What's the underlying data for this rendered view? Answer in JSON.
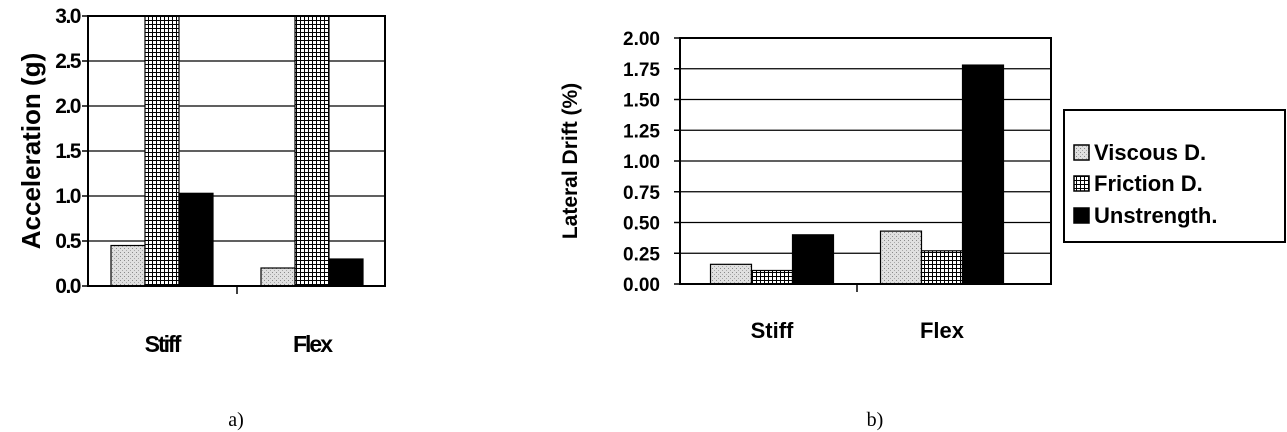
{
  "chart_data": [
    {
      "id": "a",
      "type": "bar",
      "panel_label": "a)",
      "ylabel": "Acceleration (g)",
      "ylim": [
        0,
        3.0
      ],
      "yticks": [
        "0.0",
        "0.5",
        "1.0",
        "1.5",
        "2.0",
        "2.5",
        "3.0"
      ],
      "categories": [
        "Stiff",
        "Flex"
      ],
      "series": [
        {
          "name": "Viscous D.",
          "values": [
            0.45,
            0.2
          ]
        },
        {
          "name": "Friction D.",
          "values": [
            3.0,
            3.0
          ]
        },
        {
          "name": "Unstrength.",
          "values": [
            1.03,
            0.3
          ]
        }
      ],
      "grid": true,
      "legend": "none"
    },
    {
      "id": "b",
      "type": "bar",
      "panel_label": "b)",
      "ylabel": "Lateral Drift (%)",
      "ylim": [
        0,
        2.0
      ],
      "yticks": [
        "0.00",
        "0.25",
        "0.50",
        "0.75",
        "1.00",
        "1.25",
        "1.50",
        "1.75",
        "2.00"
      ],
      "categories": [
        "Stiff",
        "Flex"
      ],
      "series": [
        {
          "name": "Viscous D.",
          "values": [
            0.16,
            0.43
          ]
        },
        {
          "name": "Friction D.",
          "values": [
            0.11,
            0.27
          ]
        },
        {
          "name": "Unstrength.",
          "values": [
            0.4,
            1.78
          ]
        }
      ],
      "grid": true,
      "legend": "right"
    }
  ],
  "series_styles": [
    {
      "name": "Viscous D.",
      "fill": "light-dotted",
      "color": "#d9d9d9"
    },
    {
      "name": "Friction D.",
      "fill": "crosshatch",
      "color": "#ffffff"
    },
    {
      "name": "Unstrength.",
      "fill": "solid",
      "color": "#000000"
    }
  ]
}
